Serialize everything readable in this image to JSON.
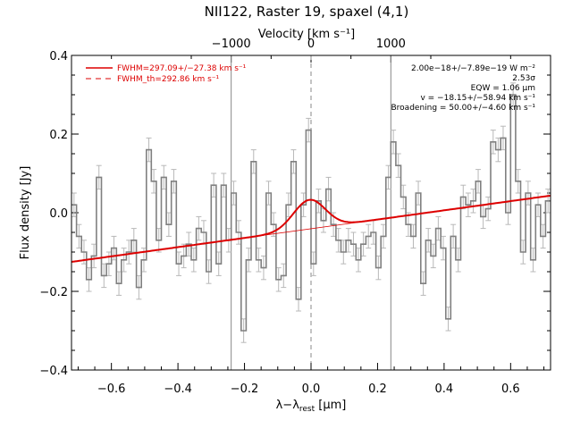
{
  "chart_data": {
    "type": "line",
    "title": "NII122, Raster 19, spaxel (4,1)",
    "xlabel_main": "λ−λ",
    "xlabel_sub": "rest",
    "xlabel_unit": " [μm]",
    "ylabel": "Flux density [Jy]",
    "top_axis_label": "Velocity [km s⁻¹]",
    "xlim": [
      -0.72,
      0.72
    ],
    "ylim": [
      -0.4,
      0.4
    ],
    "x_ticks": [
      -0.6,
      -0.4,
      -0.2,
      0.0,
      0.2,
      0.4,
      0.6
    ],
    "x_tick_labels": [
      "−0.6",
      "−0.4",
      "−0.2",
      "0.0",
      "0.2",
      "0.4",
      "0.6"
    ],
    "y_ticks": [
      -0.4,
      -0.2,
      0.0,
      0.2,
      0.4
    ],
    "y_tick_labels": [
      "−0.4",
      "−0.2",
      "0.0",
      "0.2",
      "0.4"
    ],
    "top_ticks": [
      -1000,
      0,
      1000
    ],
    "top_tick_labels": [
      "−1000",
      "0",
      "1000"
    ],
    "legend": [
      {
        "label": "FWHM=297.09+/−27.38 km s⁻¹",
        "style": "solid",
        "color": "#dd0000"
      },
      {
        "label": "FWHM_th=292.86 km s⁻¹",
        "style": "dashed",
        "color": "#dd0000"
      }
    ],
    "annotations": [
      "2.00e−18+/−7.89e−19 W m⁻²",
      "2.53σ",
      "EQW = 1.06 μm",
      "v = −18.15+/−58.94 km s⁻¹",
      "Broadening = 50.00+/−4.60 km s⁻¹"
    ],
    "vlines": [
      -0.24,
      0.0,
      0.24
    ],
    "spectrum": {
      "x": [
        -0.72,
        -0.705,
        -0.69,
        -0.675,
        -0.66,
        -0.645,
        -0.63,
        -0.615,
        -0.6,
        -0.585,
        -0.57,
        -0.555,
        -0.54,
        -0.525,
        -0.51,
        -0.495,
        -0.48,
        -0.465,
        -0.45,
        -0.435,
        -0.42,
        -0.405,
        -0.39,
        -0.375,
        -0.36,
        -0.345,
        -0.33,
        -0.315,
        -0.3,
        -0.285,
        -0.27,
        -0.255,
        -0.24,
        -0.225,
        -0.21,
        -0.195,
        -0.18,
        -0.165,
        -0.15,
        -0.135,
        -0.12,
        -0.105,
        -0.09,
        -0.075,
        -0.06,
        -0.045,
        -0.03,
        -0.015,
        0.0,
        0.015,
        0.03,
        0.045,
        0.06,
        0.075,
        0.09,
        0.105,
        0.12,
        0.135,
        0.15,
        0.165,
        0.18,
        0.195,
        0.21,
        0.225,
        0.24,
        0.255,
        0.27,
        0.285,
        0.3,
        0.315,
        0.33,
        0.345,
        0.36,
        0.375,
        0.39,
        0.405,
        0.42,
        0.435,
        0.45,
        0.465,
        0.48,
        0.495,
        0.51,
        0.525,
        0.54,
        0.555,
        0.57,
        0.585,
        0.6,
        0.615,
        0.63,
        0.645,
        0.66,
        0.675,
        0.69,
        0.705
      ],
      "y": [
        0.02,
        -0.06,
        -0.1,
        -0.17,
        -0.11,
        0.09,
        -0.16,
        -0.13,
        -0.09,
        -0.18,
        -0.12,
        -0.1,
        -0.07,
        -0.19,
        -0.12,
        0.16,
        0.08,
        -0.07,
        0.09,
        -0.03,
        0.08,
        -0.13,
        -0.11,
        -0.08,
        -0.12,
        -0.04,
        -0.05,
        -0.15,
        0.07,
        -0.13,
        0.07,
        -0.07,
        0.05,
        -0.05,
        -0.3,
        -0.12,
        0.13,
        -0.12,
        -0.14,
        0.05,
        -0.03,
        -0.17,
        -0.16,
        0.02,
        0.13,
        -0.22,
        0.02,
        0.21,
        -0.13,
        0.03,
        -0.02,
        0.06,
        -0.03,
        -0.07,
        -0.1,
        -0.07,
        -0.08,
        -0.12,
        -0.08,
        -0.06,
        -0.05,
        -0.14,
        -0.06,
        0.09,
        0.18,
        0.12,
        0.04,
        -0.03,
        -0.06,
        0.05,
        -0.18,
        -0.07,
        -0.11,
        -0.04,
        -0.09,
        -0.27,
        -0.06,
        -0.12,
        0.04,
        0.02,
        0.03,
        0.08,
        -0.01,
        0.01,
        0.18,
        0.16,
        0.19,
        0.0,
        0.3,
        0.08,
        -0.1,
        0.05,
        -0.12,
        0.02,
        -0.06,
        0.03
      ],
      "err": 0.03
    },
    "fit": {
      "continuum_start": -0.125,
      "continuum_slope": 0.117,
      "peak_center": -0.005,
      "peak_amplitude": 0.074,
      "peak_sigma": 0.048
    }
  }
}
